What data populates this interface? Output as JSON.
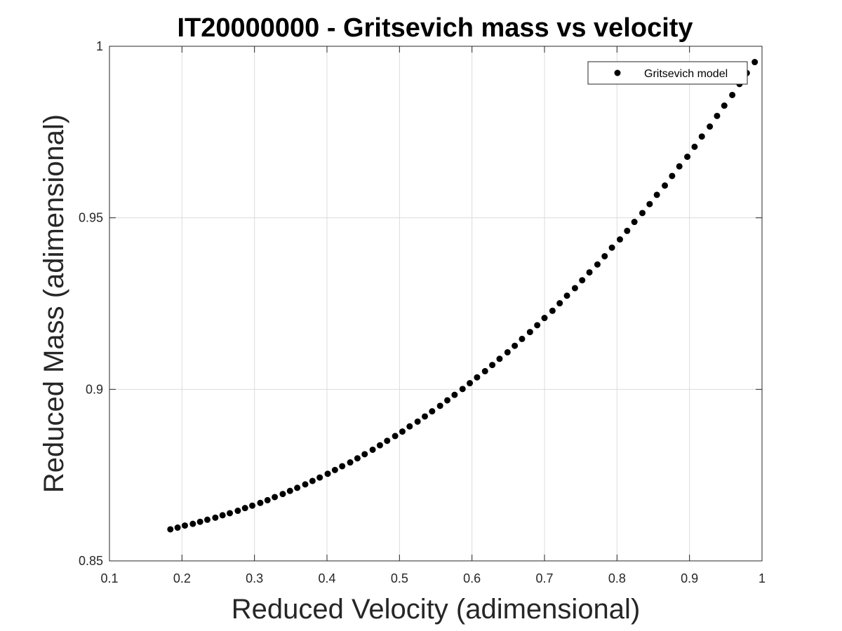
{
  "chart_data": {
    "type": "scatter",
    "title": "IT20000000 - Gritsevich mass vs velocity",
    "xlabel": "Reduced Velocity (adimensional)",
    "ylabel": "Reduced Mass (adimensional)",
    "xlim": [
      0.1,
      1
    ],
    "ylim": [
      0.85,
      1
    ],
    "x_ticks": [
      "0.1",
      "0.2",
      "0.3",
      "0.4",
      "0.5",
      "0.6",
      "0.7",
      "0.8",
      "0.9",
      "1"
    ],
    "y_ticks": [
      "0.85",
      "0.9",
      "0.95",
      "1"
    ],
    "grid": true,
    "legend_position": "top-right",
    "marker_color": "#000000",
    "series": [
      {
        "name": "Gritsevich model",
        "x": [
          0.184,
          0.194,
          0.204,
          0.215,
          0.225,
          0.235,
          0.246,
          0.256,
          0.266,
          0.277,
          0.287,
          0.297,
          0.308,
          0.318,
          0.328,
          0.339,
          0.349,
          0.359,
          0.37,
          0.38,
          0.39,
          0.401,
          0.411,
          0.421,
          0.432,
          0.442,
          0.452,
          0.463,
          0.473,
          0.483,
          0.494,
          0.504,
          0.514,
          0.525,
          0.535,
          0.545,
          0.556,
          0.566,
          0.576,
          0.587,
          0.597,
          0.607,
          0.618,
          0.628,
          0.638,
          0.649,
          0.659,
          0.669,
          0.68,
          0.69,
          0.7,
          0.711,
          0.721,
          0.731,
          0.742,
          0.752,
          0.762,
          0.773,
          0.783,
          0.793,
          0.804,
          0.814,
          0.824,
          0.835,
          0.845,
          0.855,
          0.866,
          0.876,
          0.886,
          0.897,
          0.907,
          0.917,
          0.928,
          0.938,
          0.948,
          0.959,
          0.969,
          0.979,
          0.99
        ],
        "y": [
          0.8592,
          0.8597,
          0.8603,
          0.8608,
          0.8614,
          0.862,
          0.8626,
          0.8633,
          0.8639,
          0.8646,
          0.8654,
          0.8661,
          0.8669,
          0.8677,
          0.8686,
          0.8695,
          0.8704,
          0.8713,
          0.8723,
          0.8733,
          0.8743,
          0.8754,
          0.8765,
          0.8776,
          0.8787,
          0.8799,
          0.8811,
          0.8824,
          0.8837,
          0.885,
          0.8864,
          0.8877,
          0.8892,
          0.8906,
          0.8921,
          0.8936,
          0.8952,
          0.8968,
          0.8984,
          0.9001,
          0.9018,
          0.9035,
          0.9053,
          0.9071,
          0.9089,
          0.9108,
          0.9127,
          0.9147,
          0.9167,
          0.9187,
          0.9208,
          0.9229,
          0.9251,
          0.9273,
          0.9295,
          0.9318,
          0.9341,
          0.9364,
          0.9388,
          0.9413,
          0.9437,
          0.9462,
          0.9488,
          0.9514,
          0.954,
          0.9567,
          0.9594,
          0.9622,
          0.965,
          0.9678,
          0.9707,
          0.9737,
          0.9766,
          0.9797,
          0.9827,
          0.9858,
          0.989,
          0.9922,
          0.9954
        ]
      }
    ]
  }
}
